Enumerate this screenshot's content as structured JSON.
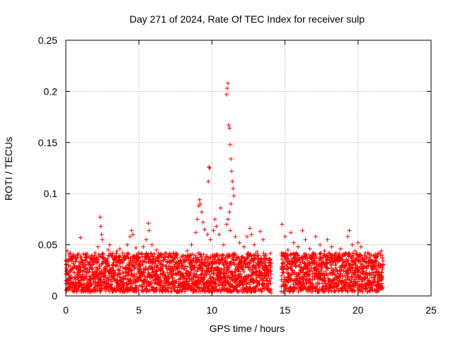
{
  "chart_data": {
    "type": "scatter",
    "title": "Day 271 of 2024, Rate Of TEC Index for receiver sulp",
    "xlabel": "GPS time / hours",
    "ylabel": "ROTI / TECUs",
    "xlim": [
      0,
      25
    ],
    "ylim": [
      0,
      0.25
    ],
    "xticks": [
      0,
      5,
      10,
      15,
      20,
      25
    ],
    "xtick_labels": [
      "0",
      "5",
      "10",
      "15",
      "20",
      "25"
    ],
    "yticks": [
      0,
      0.05,
      0.1,
      0.15,
      0.2,
      0.25
    ],
    "ytick_labels": [
      "0",
      "0.05",
      "0.1",
      "0.15",
      "0.2",
      "0.25"
    ],
    "grid": true,
    "marker": "+",
    "color": "#ff0000",
    "data_gap_hours": [
      14.05,
      14.75
    ],
    "series": [
      {
        "name": "ROTI",
        "points": [
          [
            0.1,
            0.044
          ],
          [
            0.3,
            0.036
          ],
          [
            0.6,
            0.03
          ],
          [
            0.9,
            0.041
          ],
          [
            1.0,
            0.057
          ],
          [
            1.4,
            0.038
          ],
          [
            1.7,
            0.033
          ],
          [
            2.0,
            0.042
          ],
          [
            2.2,
            0.048
          ],
          [
            2.35,
            0.077
          ],
          [
            2.4,
            0.068
          ],
          [
            2.45,
            0.06
          ],
          [
            2.5,
            0.055
          ],
          [
            2.9,
            0.045
          ],
          [
            3.0,
            0.05
          ],
          [
            3.2,
            0.038
          ],
          [
            3.5,
            0.044
          ],
          [
            3.7,
            0.046
          ],
          [
            3.9,
            0.042
          ],
          [
            4.2,
            0.05
          ],
          [
            4.4,
            0.058
          ],
          [
            4.5,
            0.064
          ],
          [
            4.6,
            0.06
          ],
          [
            4.8,
            0.047
          ],
          [
            5.0,
            0.042
          ],
          [
            5.3,
            0.048
          ],
          [
            5.5,
            0.055
          ],
          [
            5.65,
            0.071
          ],
          [
            5.7,
            0.064
          ],
          [
            5.9,
            0.05
          ],
          [
            6.2,
            0.045
          ],
          [
            6.5,
            0.041
          ],
          [
            6.8,
            0.038
          ],
          [
            7.1,
            0.034
          ],
          [
            7.4,
            0.036
          ],
          [
            7.7,
            0.032
          ],
          [
            8.0,
            0.038
          ],
          [
            8.3,
            0.044
          ],
          [
            8.6,
            0.05
          ],
          [
            8.9,
            0.062
          ],
          [
            9.0,
            0.075
          ],
          [
            9.1,
            0.088
          ],
          [
            9.15,
            0.094
          ],
          [
            9.2,
            0.09
          ],
          [
            9.3,
            0.082
          ],
          [
            9.4,
            0.072
          ],
          [
            9.5,
            0.065
          ],
          [
            9.7,
            0.06
          ],
          [
            9.75,
            0.112
          ],
          [
            9.8,
            0.126
          ],
          [
            9.85,
            0.125
          ],
          [
            9.9,
            0.055
          ],
          [
            10.1,
            0.064
          ],
          [
            10.2,
            0.075
          ],
          [
            10.3,
            0.068
          ],
          [
            10.5,
            0.06
          ],
          [
            10.6,
            0.086
          ],
          [
            10.8,
            0.05
          ],
          [
            11.0,
            0.197
          ],
          [
            11.05,
            0.203
          ],
          [
            11.1,
            0.208
          ],
          [
            11.15,
            0.167
          ],
          [
            11.2,
            0.164
          ],
          [
            11.25,
            0.148
          ],
          [
            11.3,
            0.134
          ],
          [
            11.35,
            0.122
          ],
          [
            11.4,
            0.112
          ],
          [
            11.45,
            0.105
          ],
          [
            11.5,
            0.098
          ],
          [
            11.3,
            0.09
          ],
          [
            11.2,
            0.082
          ],
          [
            11.1,
            0.075
          ],
          [
            11.0,
            0.07
          ],
          [
            11.25,
            0.064
          ],
          [
            11.6,
            0.058
          ],
          [
            11.9,
            0.052
          ],
          [
            12.2,
            0.048
          ],
          [
            12.4,
            0.058
          ],
          [
            12.6,
            0.066
          ],
          [
            12.7,
            0.06
          ],
          [
            12.9,
            0.05
          ],
          [
            13.1,
            0.043
          ],
          [
            13.3,
            0.063
          ],
          [
            13.5,
            0.055
          ],
          [
            13.7,
            0.04
          ],
          [
            13.9,
            0.03
          ],
          [
            14.05,
            0.003
          ],
          [
            14.8,
            0.07
          ],
          [
            15.0,
            0.058
          ],
          [
            15.2,
            0.045
          ],
          [
            15.4,
            0.062
          ],
          [
            15.6,
            0.052
          ],
          [
            15.9,
            0.048
          ],
          [
            16.2,
            0.064
          ],
          [
            16.4,
            0.055
          ],
          [
            16.7,
            0.046
          ],
          [
            16.9,
            0.042
          ],
          [
            17.1,
            0.058
          ],
          [
            17.4,
            0.05
          ],
          [
            17.7,
            0.044
          ],
          [
            17.9,
            0.055
          ],
          [
            18.2,
            0.048
          ],
          [
            18.5,
            0.042
          ],
          [
            18.8,
            0.046
          ],
          [
            19.1,
            0.04
          ],
          [
            19.3,
            0.058
          ],
          [
            19.4,
            0.064
          ],
          [
            19.6,
            0.05
          ],
          [
            19.8,
            0.044
          ],
          [
            20.0,
            0.052
          ],
          [
            20.2,
            0.048
          ],
          [
            20.5,
            0.042
          ],
          [
            20.8,
            0.038
          ],
          [
            21.1,
            0.035
          ],
          [
            21.4,
            0.032
          ],
          [
            21.6,
            0.044
          ],
          [
            21.7,
            0.03
          ]
        ]
      }
    ],
    "dense_band": {
      "description_hidden": "",
      "segments": [
        {
          "x_start": 0.0,
          "x_end": 14.05,
          "y_min": 0.004,
          "y_max": 0.042
        },
        {
          "x_start": 14.75,
          "x_end": 21.7,
          "y_min": 0.004,
          "y_max": 0.042
        }
      ]
    }
  }
}
